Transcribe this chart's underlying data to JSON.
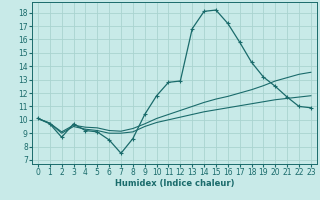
{
  "xlabel": "Humidex (Indice chaleur)",
  "x_ticks": [
    0,
    1,
    2,
    3,
    4,
    5,
    6,
    7,
    8,
    9,
    10,
    11,
    12,
    13,
    14,
    15,
    16,
    17,
    18,
    19,
    20,
    21,
    22,
    23
  ],
  "y_ticks": [
    7,
    8,
    9,
    10,
    11,
    12,
    13,
    14,
    15,
    16,
    17,
    18
  ],
  "ylim": [
    6.7,
    18.8
  ],
  "xlim": [
    -0.5,
    23.5
  ],
  "bg_color": "#c8eae8",
  "grid_color": "#aad4d0",
  "line_color": "#1a6b6b",
  "line1_y": [
    10.1,
    9.7,
    8.7,
    9.7,
    9.2,
    9.1,
    8.5,
    7.5,
    8.6,
    10.4,
    11.8,
    12.8,
    12.9,
    16.8,
    18.1,
    18.2,
    17.2,
    15.8,
    14.3,
    13.2,
    12.5,
    11.7,
    11.0,
    10.9
  ],
  "line2_y": [
    10.1,
    9.75,
    9.0,
    9.5,
    9.3,
    9.2,
    9.0,
    9.0,
    9.1,
    9.5,
    9.8,
    10.0,
    10.2,
    10.4,
    10.6,
    10.75,
    10.9,
    11.05,
    11.2,
    11.35,
    11.5,
    11.6,
    11.7,
    11.8
  ],
  "line3_y": [
    10.1,
    9.75,
    9.1,
    9.6,
    9.45,
    9.4,
    9.2,
    9.15,
    9.35,
    9.7,
    10.1,
    10.4,
    10.7,
    11.0,
    11.3,
    11.55,
    11.75,
    12.0,
    12.25,
    12.55,
    12.9,
    13.15,
    13.4,
    13.55
  ]
}
